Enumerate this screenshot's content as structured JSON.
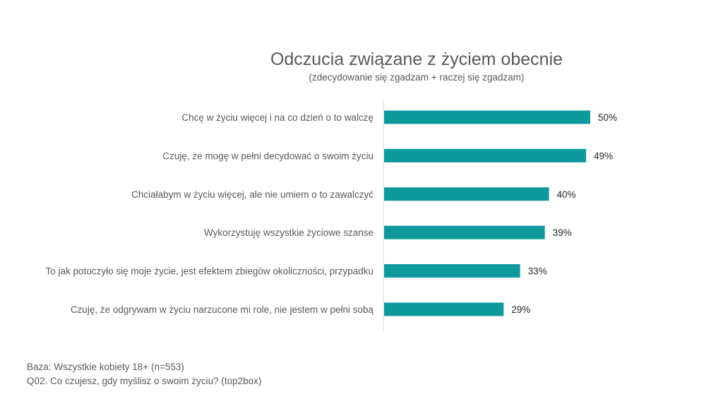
{
  "chart_data": {
    "type": "bar",
    "orientation": "horizontal",
    "title": "Odczucia związane z życiem obecnie",
    "subtitle": "(zdecydowanie się zgadzam + raczej się zgadzam)",
    "categories": [
      "Chcę w życiu więcej i na co dzień o to walczę",
      "Czuję, że mogę w pełni decydować o swoim życiu",
      "Chciałabym w życiu więcej, ale nie umiem o to zawalczyć",
      "Wykorzystuję wszystkie życiowe szanse",
      "To jak potoczyło się moje życie, jest efektem zbiegów okoliczności, przypadku",
      "Czuję, że odgrywam w życiu narzucone mi role, nie jestem w pełni sobą"
    ],
    "values": [
      50,
      49,
      40,
      39,
      33,
      29
    ],
    "value_labels": [
      "50%",
      "49%",
      "40%",
      "39%",
      "33%",
      "29%"
    ],
    "unit": "%",
    "xlim": [
      0,
      100
    ],
    "bar_color": "#0e9a9c",
    "grid": false
  },
  "footnotes": {
    "base": "Baza: Wszystkie kobiety 18+ (n=553)",
    "question": "Q02. Co czujesz, gdy myślisz o swoim życiu? (top2box)"
  }
}
